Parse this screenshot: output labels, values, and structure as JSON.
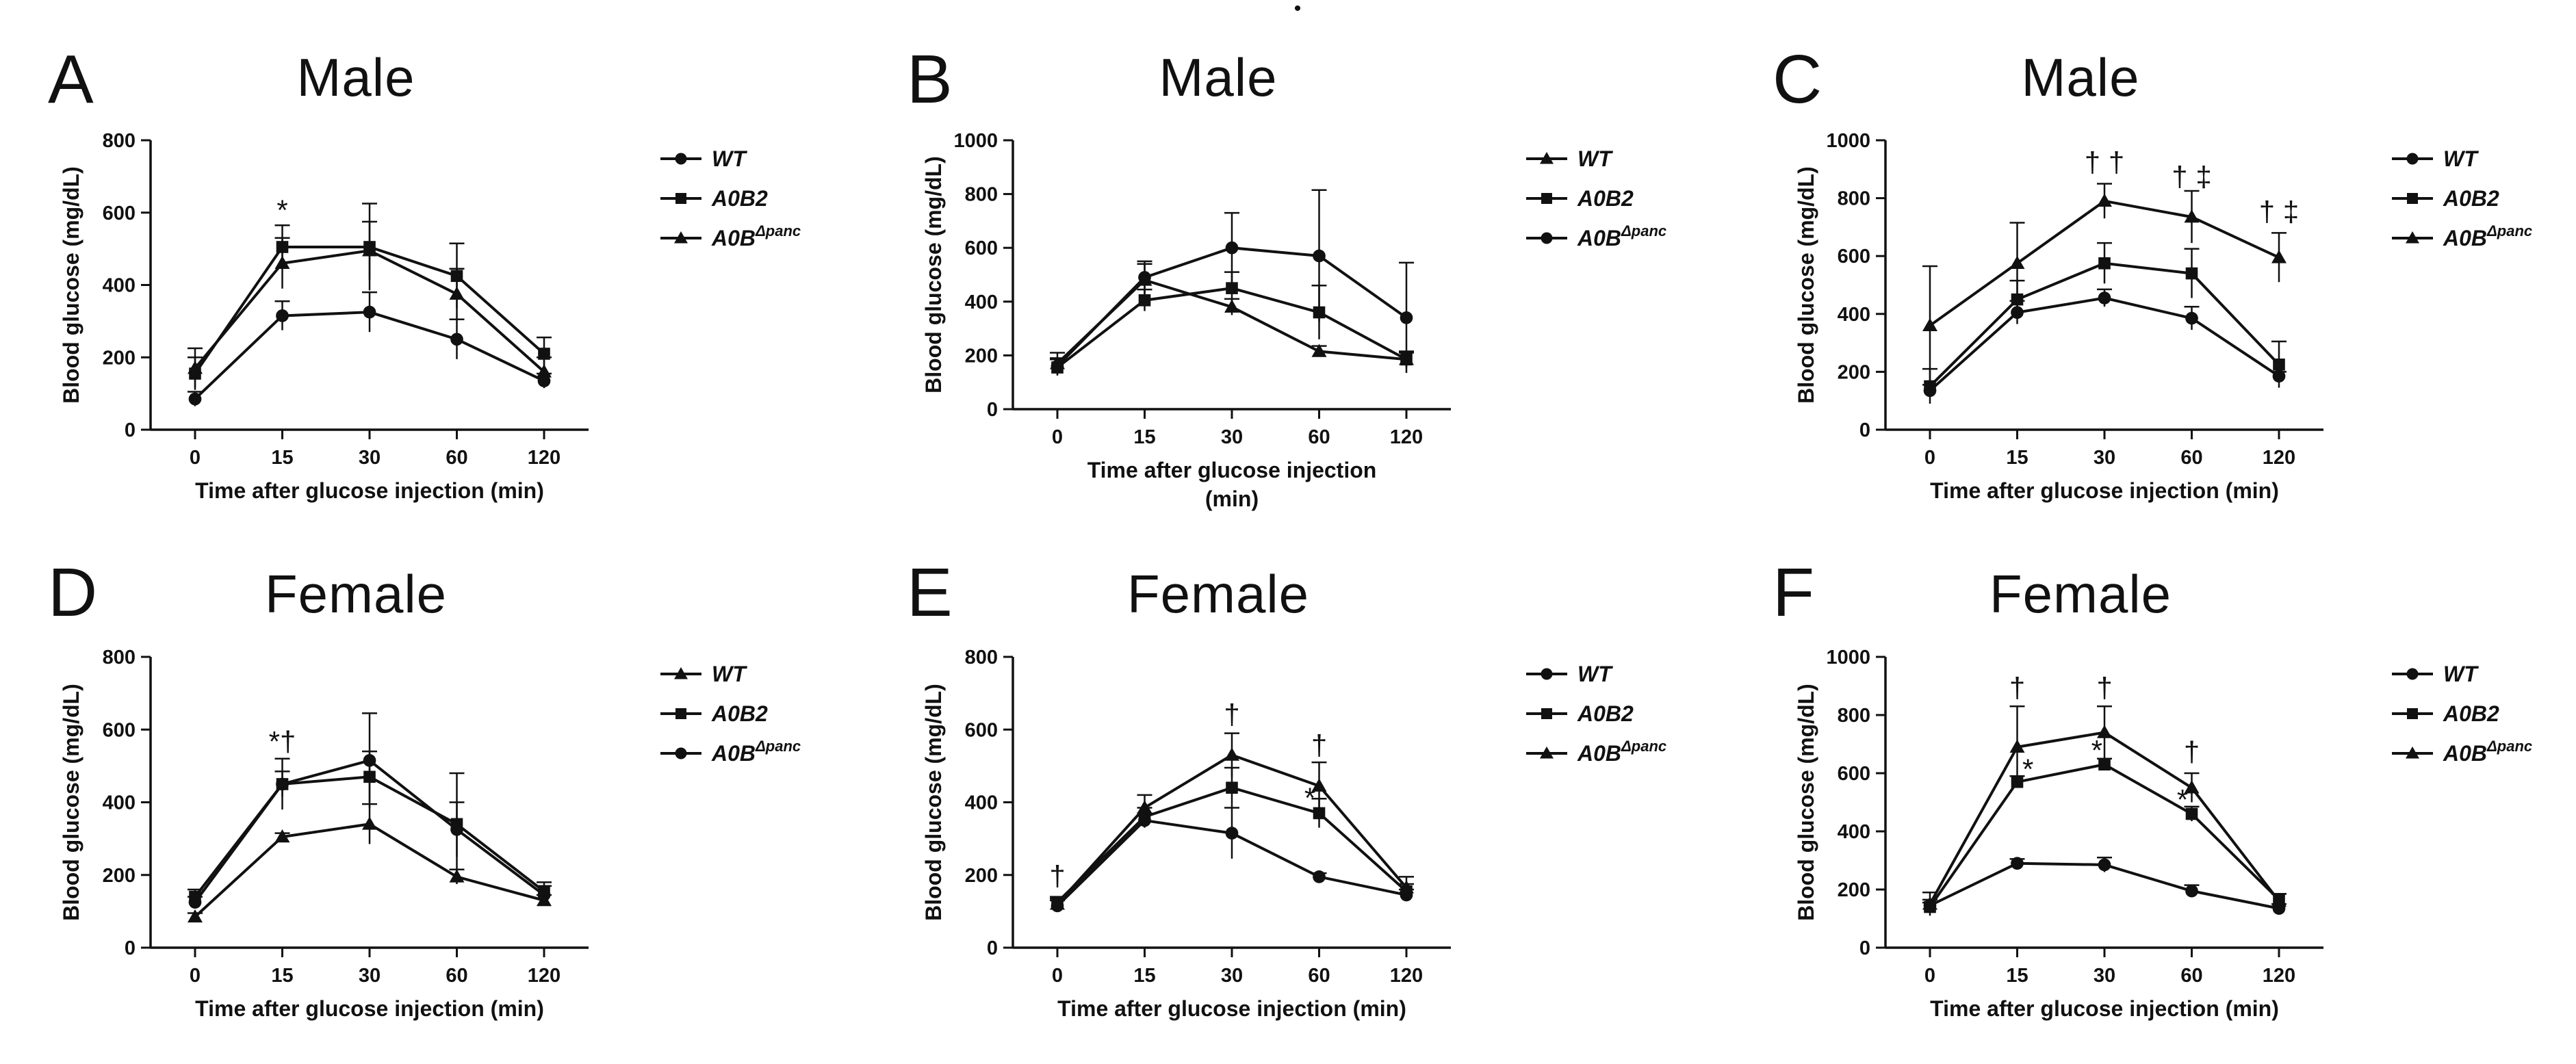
{
  "figure": {
    "dot": "•"
  },
  "chart_data": [
    {
      "panel": "A",
      "title": "Male",
      "type": "line",
      "xlabel": [
        "Time after glucose injection (min)"
      ],
      "ylabel": "Blood glucose (mg/dL)",
      "ylim": [
        0,
        800
      ],
      "yticks": [
        0,
        200,
        400,
        600,
        800
      ],
      "categories": [
        "0",
        "15",
        "30",
        "60",
        "120"
      ],
      "series": [
        {
          "name": "WT",
          "marker": "circle",
          "values": [
            85,
            315,
            325,
            250,
            135
          ],
          "errors": [
            20,
            40,
            55,
            55,
            20
          ]
        },
        {
          "name": "A0B2",
          "marker": "square",
          "values": [
            155,
            505,
            505,
            425,
            210
          ],
          "errors": [
            45,
            60,
            120,
            90,
            45
          ]
        },
        {
          "name": "A0B",
          "name_sup": "Δpanc",
          "marker": "triangle",
          "values": [
            170,
            460,
            495,
            375,
            160
          ],
          "errors": [
            55,
            70,
            80,
            70,
            40
          ]
        }
      ],
      "annotations": [
        {
          "text": "*",
          "category": "15",
          "y": 580
        }
      ]
    },
    {
      "panel": "B",
      "title": "Male",
      "type": "line",
      "xlabel": [
        "Time after glucose injection",
        "(min)"
      ],
      "ylabel": "Blood glucose (mg/dL)",
      "ylim": [
        0,
        1000
      ],
      "yticks": [
        0,
        200,
        400,
        600,
        800,
        1000
      ],
      "categories": [
        "0",
        "15",
        "30",
        "60",
        "120"
      ],
      "series": [
        {
          "name": "WT",
          "marker": "triangle",
          "values": [
            170,
            480,
            380,
            215,
            185
          ],
          "errors": [
            40,
            60,
            30,
            20,
            25
          ]
        },
        {
          "name": "A0B2",
          "marker": "square",
          "values": [
            155,
            405,
            450,
            360,
            185
          ],
          "errors": [
            30,
            40,
            60,
            100,
            30
          ]
        },
        {
          "name": "A0B",
          "name_sup": "Δpanc",
          "marker": "circle",
          "values": [
            160,
            490,
            600,
            570,
            340
          ],
          "errors": [
            30,
            60,
            130,
            245,
            205
          ]
        }
      ],
      "annotations": []
    },
    {
      "panel": "C",
      "title": "Male",
      "type": "line",
      "xlabel": [
        "Time after glucose injection (min)"
      ],
      "ylabel": "Blood glucose (mg/dL)",
      "ylim": [
        0,
        1000
      ],
      "yticks": [
        0,
        200,
        400,
        600,
        800,
        1000
      ],
      "categories": [
        "0",
        "15",
        "30",
        "60",
        "120"
      ],
      "series": [
        {
          "name": "WT",
          "marker": "circle",
          "values": [
            135,
            405,
            455,
            385,
            185
          ],
          "errors": [
            20,
            40,
            30,
            40,
            15
          ]
        },
        {
          "name": "A0B2",
          "marker": "square",
          "values": [
            150,
            450,
            575,
            540,
            225
          ],
          "errors": [
            60,
            65,
            70,
            85,
            80
          ]
        },
        {
          "name": "A0B",
          "name_sup": "Δpanc",
          "marker": "triangle",
          "values": [
            360,
            575,
            790,
            735,
            595
          ],
          "errors": [
            205,
            140,
            60,
            90,
            85
          ]
        }
      ],
      "annotations": [
        {
          "text": "† †",
          "category": "30",
          "y": 890
        },
        {
          "text": "† ‡",
          "category": "60",
          "y": 840
        },
        {
          "text": "† ‡",
          "category": "120",
          "y": 720
        }
      ]
    },
    {
      "panel": "D",
      "title": "Female",
      "type": "line",
      "xlabel": [
        "Time after glucose injection (min)"
      ],
      "ylabel": "Blood glucose (mg/dL)",
      "ylim": [
        0,
        800
      ],
      "yticks": [
        0,
        200,
        400,
        600,
        800
      ],
      "categories": [
        "0",
        "15",
        "30",
        "60",
        "120"
      ],
      "series": [
        {
          "name": "WT",
          "marker": "triangle",
          "values": [
            85,
            305,
            340,
            195,
            130
          ],
          "errors": [
            10,
            10,
            55,
            20,
            15
          ]
        },
        {
          "name": "A0B2",
          "marker": "square",
          "values": [
            140,
            450,
            470,
            340,
            155
          ],
          "errors": [
            20,
            35,
            70,
            140,
            25
          ]
        },
        {
          "name": "A0B",
          "name_sup": "Δpanc",
          "marker": "circle",
          "values": [
            125,
            450,
            515,
            325,
            145
          ],
          "errors": [
            15,
            70,
            130,
            75,
            25
          ]
        }
      ],
      "annotations": [
        {
          "text": "*†",
          "category": "15",
          "y": 540
        }
      ]
    },
    {
      "panel": "E",
      "title": "Female",
      "type": "line",
      "xlabel": [
        "Time after glucose injection (min)"
      ],
      "ylabel": "Blood glucose (mg/dL)",
      "ylim": [
        0,
        800
      ],
      "yticks": [
        0,
        200,
        400,
        600,
        800
      ],
      "categories": [
        "0",
        "15",
        "30",
        "60",
        "120"
      ],
      "series": [
        {
          "name": "WT",
          "marker": "circle",
          "values": [
            115,
            350,
            315,
            195,
            145
          ],
          "errors": [
            15,
            20,
            70,
            10,
            15
          ]
        },
        {
          "name": "A0B2",
          "marker": "square",
          "values": [
            125,
            360,
            440,
            370,
            155
          ],
          "errors": [
            15,
            25,
            55,
            40,
            20
          ]
        },
        {
          "name": "A0B",
          "name_sup": "Δpanc",
          "marker": "triangle",
          "values": [
            120,
            385,
            530,
            445,
            165
          ],
          "errors": [
            15,
            35,
            60,
            65,
            30
          ]
        }
      ],
      "annotations": [
        {
          "text": "†",
          "category": "0",
          "y": 170
        },
        {
          "text": "†",
          "category": "30",
          "y": 615
        },
        {
          "text": "†",
          "category": "60",
          "y": 530
        },
        {
          "text": "*",
          "category": "60",
          "y": 385,
          "dx": -0.3
        }
      ]
    },
    {
      "panel": "F",
      "title": "Female",
      "type": "line",
      "xlabel": [
        "Time after glucose injection (min)"
      ],
      "ylabel": "Blood glucose (mg/dL)",
      "ylim": [
        0,
        1000
      ],
      "yticks": [
        0,
        200,
        400,
        600,
        800,
        1000
      ],
      "categories": [
        "0",
        "15",
        "30",
        "60",
        "120"
      ],
      "series": [
        {
          "name": "WT",
          "marker": "circle",
          "values": [
            145,
            290,
            285,
            195,
            135
          ],
          "errors": [
            20,
            15,
            25,
            20,
            15
          ]
        },
        {
          "name": "A0B2",
          "marker": "square",
          "values": [
            140,
            570,
            630,
            460,
            165
          ],
          "errors": [
            15,
            20,
            20,
            25,
            20
          ]
        },
        {
          "name": "A0B",
          "name_sup": "Δpanc",
          "marker": "triangle",
          "values": [
            150,
            690,
            740,
            550,
            160
          ],
          "errors": [
            40,
            140,
            90,
            50,
            25
          ]
        }
      ],
      "annotations": [
        {
          "text": "†",
          "category": "15",
          "y": 860
        },
        {
          "text": "†",
          "category": "30",
          "y": 860
        },
        {
          "text": "†",
          "category": "60",
          "y": 640
        },
        {
          "text": "*",
          "category": "15",
          "y": 580,
          "dx": 0.35
        },
        {
          "text": "*",
          "category": "30",
          "y": 645,
          "dx": -0.25
        },
        {
          "text": "*",
          "category": "60",
          "y": 475,
          "dx": -0.3
        }
      ]
    }
  ]
}
